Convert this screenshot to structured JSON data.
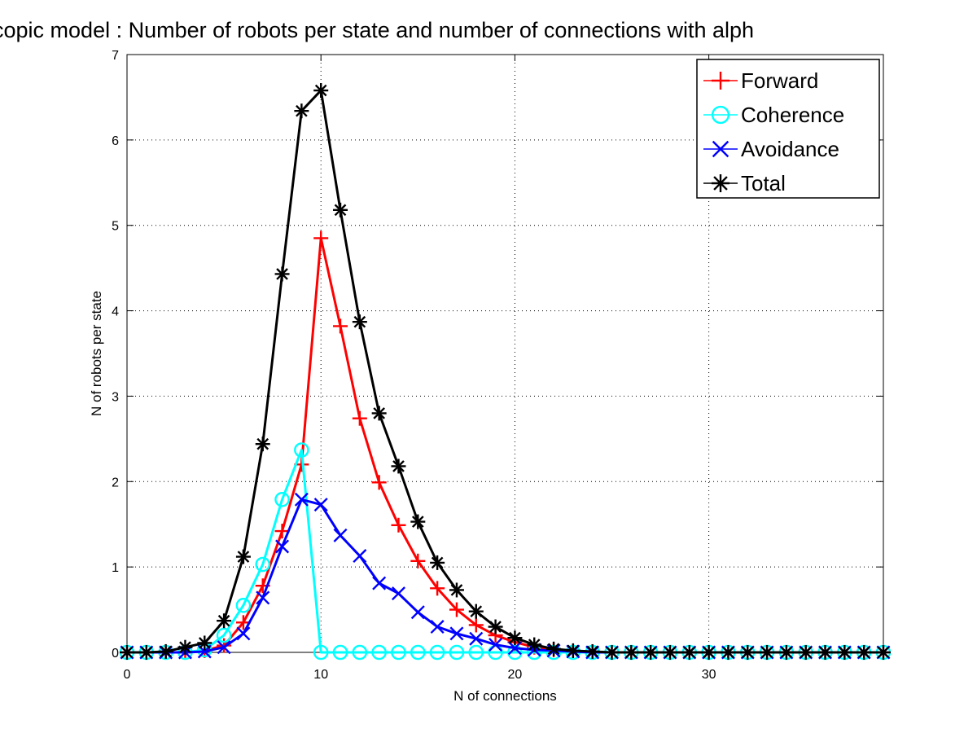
{
  "chart_data": {
    "type": "line",
    "title": "croscopic model : Number of robots per state and number of connections with alph",
    "xlabel": "N of connections",
    "ylabel": "N of robots per state",
    "xlim": [
      0,
      39
    ],
    "ylim": [
      0,
      7
    ],
    "xticks": [
      "0",
      "10",
      "20",
      "30"
    ],
    "yticks": [
      "0",
      "1",
      "2",
      "3",
      "4",
      "5",
      "6",
      "7"
    ],
    "grid": true,
    "legend_position": "top-right",
    "x": [
      0,
      1,
      2,
      3,
      4,
      5,
      6,
      7,
      8,
      9,
      10,
      11,
      12,
      13,
      14,
      15,
      16,
      17,
      18,
      19,
      20,
      21,
      22,
      23,
      24,
      25,
      26,
      27,
      28,
      29,
      30,
      31,
      32,
      33,
      34,
      35,
      36,
      37,
      38,
      39
    ],
    "series": [
      {
        "name": "Forward",
        "color": "#ff0000",
        "marker": "plus",
        "values": [
          0,
          0,
          0,
          0,
          0.02,
          0.08,
          0.35,
          0.78,
          1.42,
          2.2,
          4.85,
          3.82,
          2.74,
          1.99,
          1.49,
          1.07,
          0.75,
          0.5,
          0.32,
          0.2,
          0.12,
          0.06,
          0.03,
          0.01,
          0,
          0,
          0,
          0,
          0,
          0,
          0,
          0,
          0,
          0,
          0,
          0,
          0,
          0,
          0,
          0
        ]
      },
      {
        "name": "Coherence",
        "color": "#00ffff",
        "marker": "circle",
        "values": [
          0,
          0,
          0,
          0,
          0.03,
          0.2,
          0.55,
          1.03,
          1.79,
          2.37,
          0,
          0,
          0,
          0,
          0,
          0,
          0,
          0,
          0,
          0,
          0,
          0,
          0,
          0,
          0,
          0,
          0,
          0,
          0,
          0,
          0,
          0,
          0,
          0,
          0,
          0,
          0,
          0,
          0,
          0
        ]
      },
      {
        "name": "Avoidance",
        "color": "#0000ff",
        "marker": "x",
        "values": [
          0,
          0,
          0,
          0,
          0.01,
          0.06,
          0.22,
          0.64,
          1.24,
          1.79,
          1.73,
          1.37,
          1.13,
          0.81,
          0.69,
          0.47,
          0.3,
          0.22,
          0.16,
          0.09,
          0.05,
          0.03,
          0.02,
          0.01,
          0,
          0,
          0,
          0,
          0,
          0,
          0,
          0,
          0,
          0,
          0,
          0,
          0,
          0,
          0,
          0
        ]
      },
      {
        "name": "Total",
        "color": "#000000",
        "marker": "asterisk",
        "values": [
          0,
          0,
          0.01,
          0.06,
          0.11,
          0.37,
          1.12,
          2.44,
          4.43,
          6.34,
          6.58,
          5.18,
          3.87,
          2.8,
          2.18,
          1.53,
          1.05,
          0.73,
          0.48,
          0.3,
          0.17,
          0.09,
          0.04,
          0.02,
          0.01,
          0,
          0,
          0,
          0,
          0,
          0,
          0,
          0,
          0,
          0,
          0,
          0,
          0,
          0,
          0
        ]
      }
    ]
  }
}
